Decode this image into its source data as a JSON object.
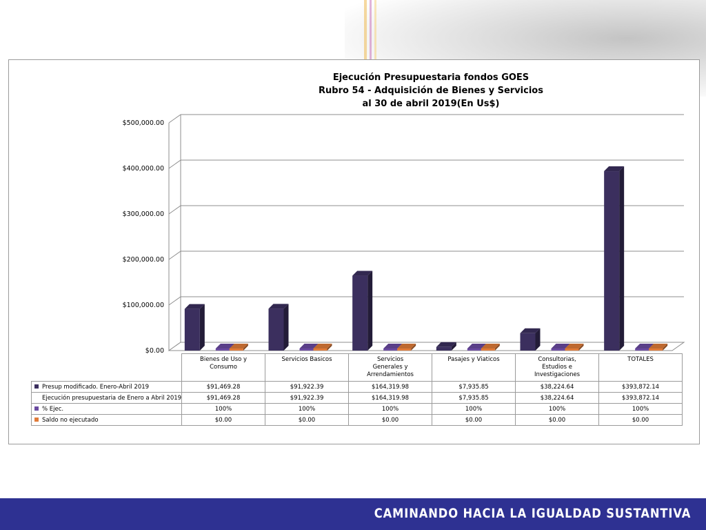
{
  "chart_data": {
    "type": "bar",
    "title_lines": [
      "Ejecución Presupuestaria fondos GOES",
      "Rubro 54 - Adquisición de Bienes y Servicios",
      "al 30 de abril 2019(En Us$)"
    ],
    "ylim": [
      0,
      500000
    ],
    "yticks": [
      "$0.00",
      "$100,000.00",
      "$200,000.00",
      "$300,000.00",
      "$400,000.00",
      "$500,000.00"
    ],
    "ytick_values": [
      0,
      100000,
      200000,
      300000,
      400000,
      500000
    ],
    "grid": true,
    "categories": [
      [
        "Bienes de Uso y",
        "Consumo"
      ],
      [
        "Servicios Basicos"
      ],
      [
        "Servicios",
        "Generales y",
        "Arrendamientos"
      ],
      [
        "Pasajes y Viaticos"
      ],
      [
        "Consultorias,",
        "Estudios e",
        "Investigaciones"
      ],
      [
        "TOTALES"
      ]
    ],
    "series": [
      {
        "name": "Presup modificado. Enero-Abril 2019",
        "color": "#3b2f5e",
        "values": [
          91469.28,
          91922.39,
          164319.98,
          7935.85,
          38224.64,
          393872.14
        ],
        "labels": [
          "$91,469.28",
          "$91,922.39",
          "$164,319.98",
          "$7,935.85",
          "$38,224.64",
          "$393,872.14"
        ]
      },
      {
        "name": "Ejecución presupuestaria de Enero a Abril 2019",
        "color": "#ffffff",
        "values": [
          91469.28,
          91922.39,
          164319.98,
          7935.85,
          38224.64,
          393872.14
        ],
        "labels": [
          "$91,469.28",
          "$91,922.39",
          "$164,319.98",
          "$7,935.85",
          "$38,224.64",
          "$393,872.14"
        ]
      },
      {
        "name": "% Ejec.",
        "color": "#6a4aa0",
        "values": [
          1,
          1,
          1,
          1,
          1,
          1
        ],
        "labels": [
          "100%",
          "100%",
          "100%",
          "100%",
          "100%",
          "100%"
        ]
      },
      {
        "name": "Saldo no ejecutado",
        "color": "#e07b39",
        "values": [
          0,
          0,
          0,
          0,
          0,
          0
        ],
        "labels": [
          "$0.00",
          "$0.00",
          "$0.00",
          "$0.00",
          "$0.00",
          "$0.00"
        ]
      }
    ]
  },
  "footer": {
    "slogan": "CAMINANDO HACIA LA IGUALDAD SUSTANTIVA",
    "band_color": "#2e3192"
  }
}
